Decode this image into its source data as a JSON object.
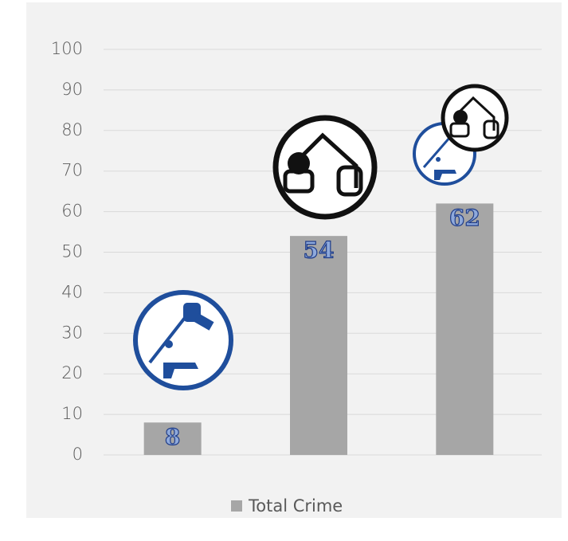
{
  "chart_data": {
    "type": "bar",
    "categories": [
      null,
      null,
      null
    ],
    "series": [
      {
        "name": "Total Crime",
        "color": "#a6a6a6",
        "values": [
          8,
          54,
          62
        ]
      }
    ],
    "ylim": [
      0,
      100
    ],
    "yticks": [
      0,
      10,
      20,
      30,
      40,
      50,
      60,
      70,
      80,
      90,
      100
    ],
    "grid": true,
    "legend": "bottom"
  }
}
